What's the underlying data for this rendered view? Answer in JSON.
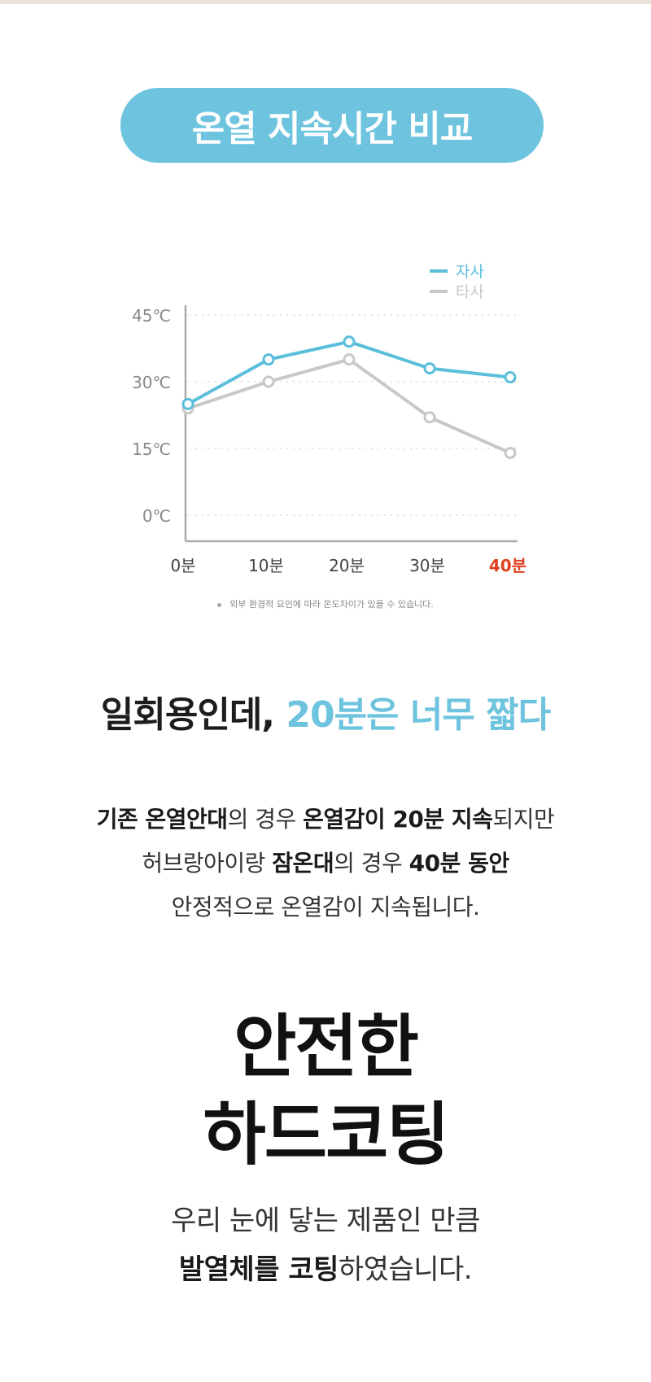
{
  "header": {
    "title": "온열 지속시간 비교"
  },
  "chart_data": {
    "type": "line",
    "categories": [
      "0분",
      "10분",
      "20분",
      "30분",
      "40분"
    ],
    "highlight_category": "40분",
    "y_ticks": [
      "45℃",
      "30℃",
      "15℃",
      "0℃"
    ],
    "ylim": [
      0,
      45
    ],
    "grid": true,
    "legend_position": "top-right",
    "series": [
      {
        "name": "자사",
        "color": "#5bbfdb",
        "values": [
          25,
          35,
          39,
          33,
          31
        ]
      },
      {
        "name": "타사",
        "color": "#c8c8c8",
        "values": [
          24,
          30,
          35,
          22,
          14
        ]
      }
    ],
    "highlight_color": "#e0401f"
  },
  "chart_note": "외부 환경적 요인에 따라 온도차이가 있을 수 있습니다.",
  "headline": {
    "part1": "일회용인데, ",
    "part2": "20분은 너무 짧다"
  },
  "description": {
    "l1_b1": "기존 온열안대",
    "l1_t1": "의 경우 ",
    "l1_b2": "온열감이 20분 지속",
    "l1_t2": "되지만",
    "l2_t1": "허브랑아이랑 ",
    "l2_b1": "잠온대",
    "l2_t2": "의 경우 ",
    "l2_b2": "40분 동안",
    "l3": "안정적으로 온열감이 지속됩니다."
  },
  "section2": {
    "title_line1": "안전한",
    "title_line2": "하드코팅",
    "desc_line1": "우리 눈에 닿는 제품인 만큼",
    "desc_b": "발열체를 코팅",
    "desc_t": "하였습니다."
  }
}
